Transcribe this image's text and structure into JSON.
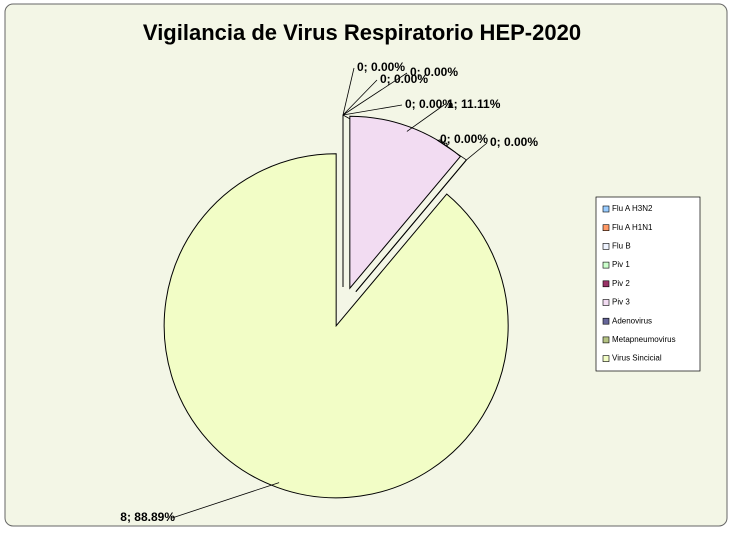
{
  "chart_data": {
    "type": "pie",
    "title": "Vigilancia de Virus Respiratorio HEP-2020",
    "categories": [
      "Flu A H3N2",
      "Flu A H1N1",
      "Flu B",
      "Piv 1",
      "Piv 2",
      "Piv 3",
      "Adenovirus",
      "Metapneumovirus",
      "Virus Sincicial"
    ],
    "values": [
      0,
      0,
      0,
      0,
      0,
      1,
      0,
      0,
      8
    ],
    "value_labels": [
      "0; 0.00%",
      "0; 0.00%",
      "0; 0.00%",
      "0; 0.00%",
      "0; 0.00%",
      "1; 11.11%",
      "0; 0.00%",
      "0; 0.00%",
      "8; 88.89%"
    ],
    "colors": [
      "#99ccff",
      "#ff9966",
      "#eef3ff",
      "#ccffcc",
      "#993366",
      "#f2dcf2",
      "#666699",
      "#b5c383",
      "#f2fdc6"
    ],
    "legend": "right"
  }
}
